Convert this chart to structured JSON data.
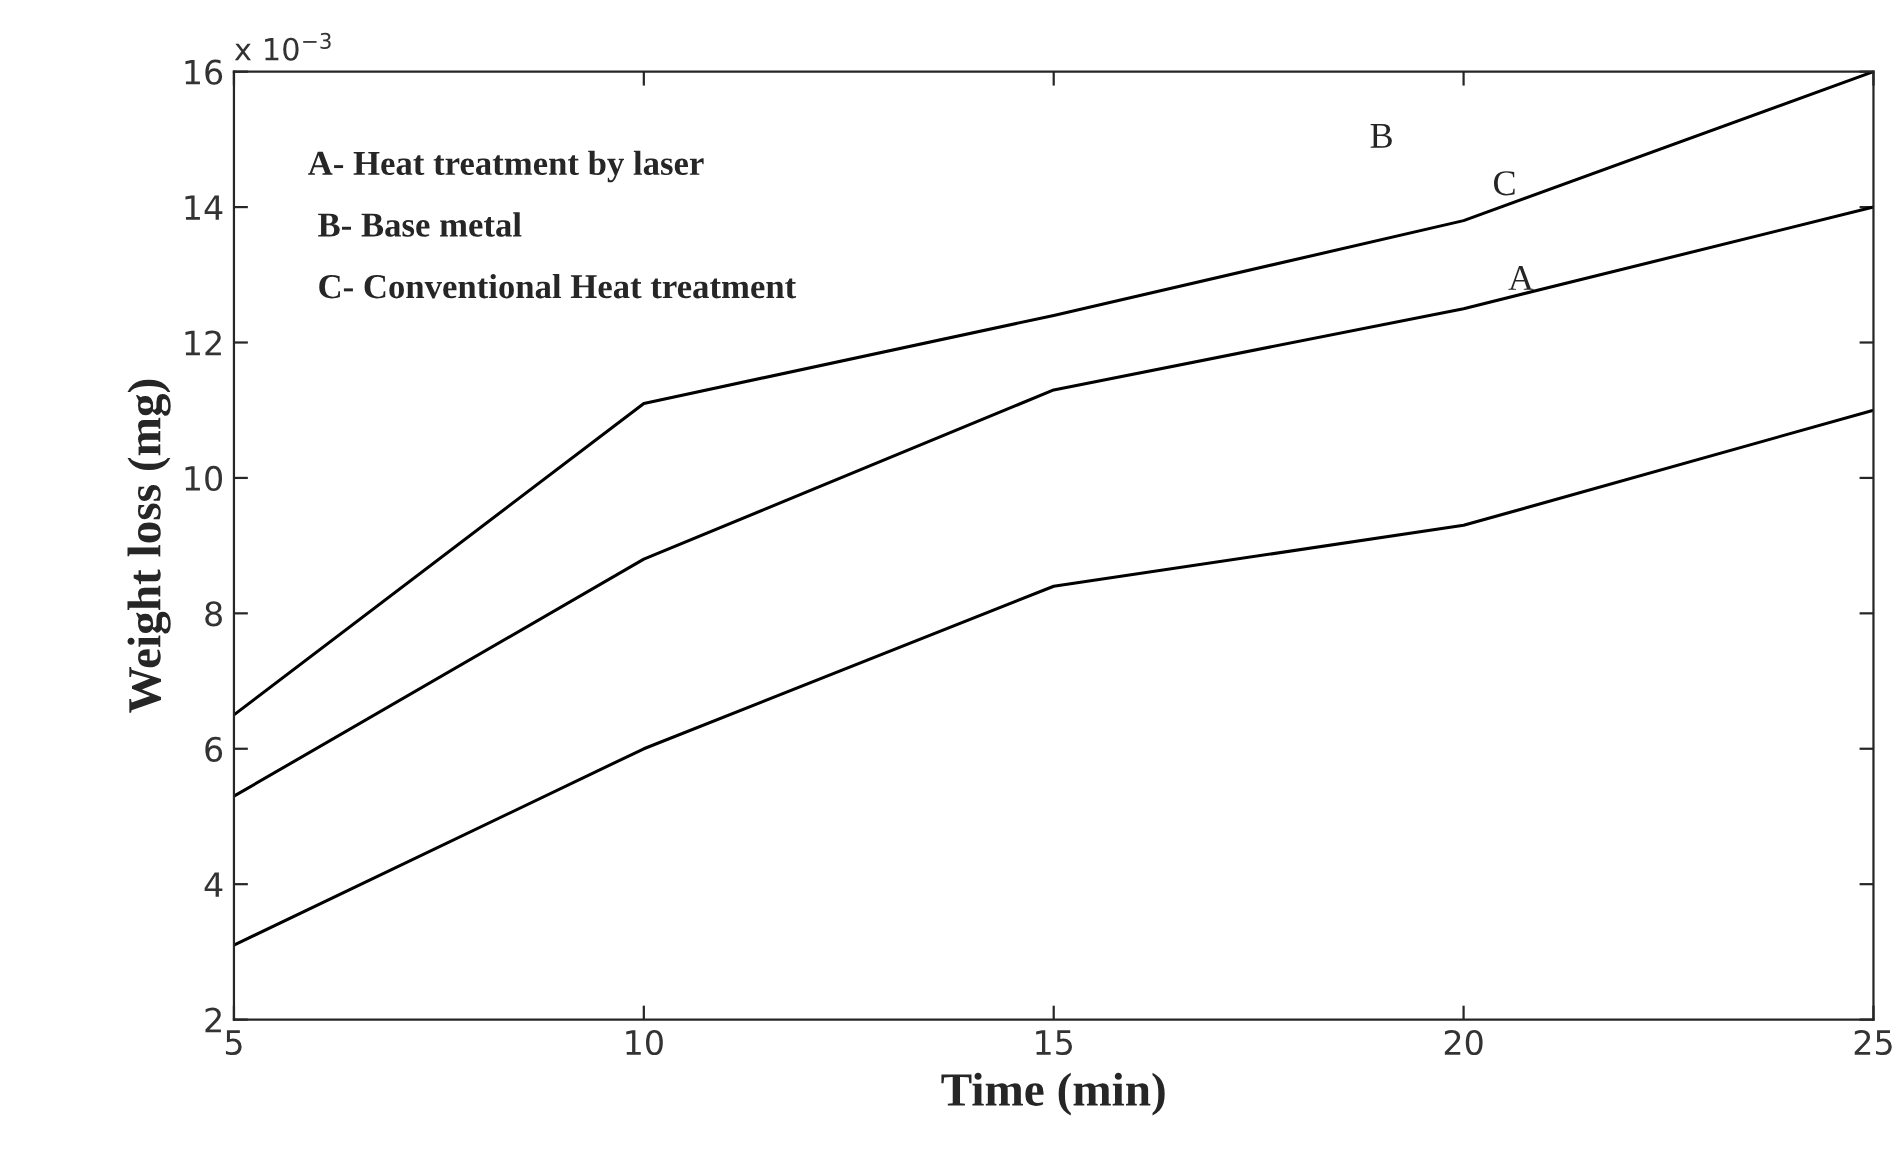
{
  "chart_data": {
    "type": "line",
    "xlabel": "Time (min)",
    "ylabel": "Weight loss (mg)",
    "x": [
      5,
      10,
      15,
      20,
      25
    ],
    "series": [
      {
        "color": "#000000",
        "values": [
          6.5,
          11.1,
          12.4,
          13.8,
          16.0
        ]
      },
      {
        "color": "#000000",
        "values": [
          5.3,
          8.8,
          11.3,
          12.5,
          14.0
        ]
      },
      {
        "color": "#000000",
        "values": [
          3.1,
          6.0,
          8.4,
          9.3,
          11.0
        ]
      }
    ],
    "xlim": [
      5,
      25
    ],
    "xticks": [
      5,
      10,
      15,
      20,
      25
    ],
    "ylim": [
      2,
      16
    ],
    "yticks": [
      2,
      4,
      6,
      8,
      10,
      12,
      14,
      16
    ],
    "annotations": [
      "x 10$^{−3}$",
      "A- Heat treatment by laser",
      "B- Base metal",
      "C- Conventional Heat treatment",
      "B",
      "C",
      "A"
    ],
    "grid": false,
    "marker": "none",
    "line_style": "solid"
  }
}
